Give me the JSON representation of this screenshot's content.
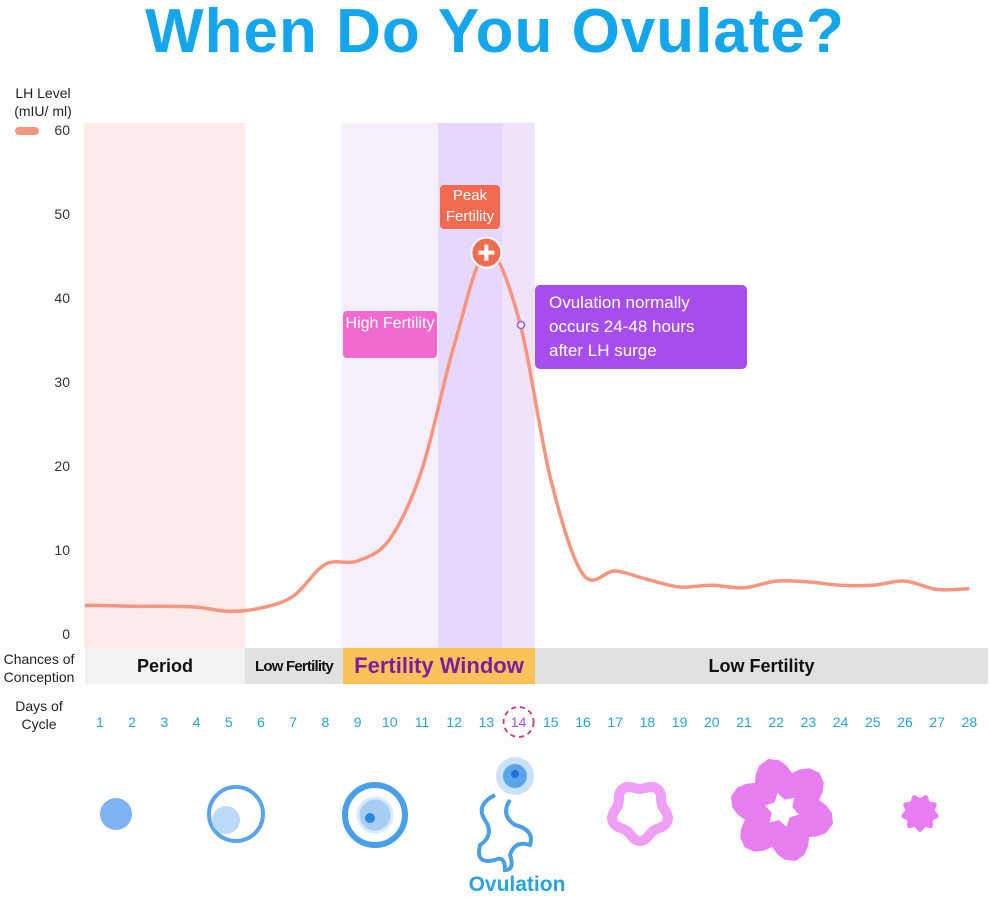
{
  "title": "When Do You Ovulate?",
  "chart_data": {
    "type": "line",
    "ylabel": "LH Level\n(mIU/ ml)",
    "ylim": [
      0,
      60
    ],
    "yticks": [
      0,
      10,
      20,
      30,
      40,
      50,
      60
    ],
    "xlabel": "Days of Cycle",
    "x": [
      1,
      2,
      3,
      4,
      5,
      6,
      7,
      8,
      9,
      10,
      11,
      12,
      13,
      14,
      15,
      16,
      17,
      18,
      19,
      20,
      21,
      22,
      23,
      24,
      25,
      26,
      27,
      28
    ],
    "highlight_day": 14,
    "series": [
      {
        "color": "#f7957e",
        "values": [
          3.4,
          3.3,
          3.3,
          3.2,
          2.7,
          3.1,
          4.5,
          8.3,
          8.7,
          11.3,
          19.6,
          34.4,
          45.4,
          37.6,
          18.4,
          7.1,
          7.5,
          6.5,
          5.6,
          5.8,
          5.5,
          6.3,
          6.2,
          5.8,
          5.8,
          6.3,
          5.3,
          5.4
        ]
      }
    ],
    "bands": [
      {
        "from": 0.5,
        "to": 5.5,
        "color": "#fdeaea"
      },
      {
        "from": 8.5,
        "to": 14.5,
        "color": "#f5effc"
      },
      {
        "from": 11.5,
        "to": 13.5,
        "color": "#e6d8fa"
      },
      {
        "from": 13.5,
        "to": 14.5,
        "color": "#eee3fb"
      }
    ],
    "annotations": {
      "peak": "Peak Fertility",
      "high": "High Fertility",
      "ovulation_note": "Ovulation normally occurs 24-48 hours after LH surge"
    }
  },
  "conception": {
    "label": "Chances of Conception",
    "segments": [
      "Period",
      "Low Fertility",
      "Fertility Window",
      "Low Fertility"
    ]
  },
  "ovulation_label": "Ovulation",
  "colors": {
    "title": "#13a6ec",
    "peak": "#f26b50",
    "high": "#f16ad0",
    "note": "#a64df0",
    "window": "#fbc25a",
    "days": "#29a3d6"
  }
}
